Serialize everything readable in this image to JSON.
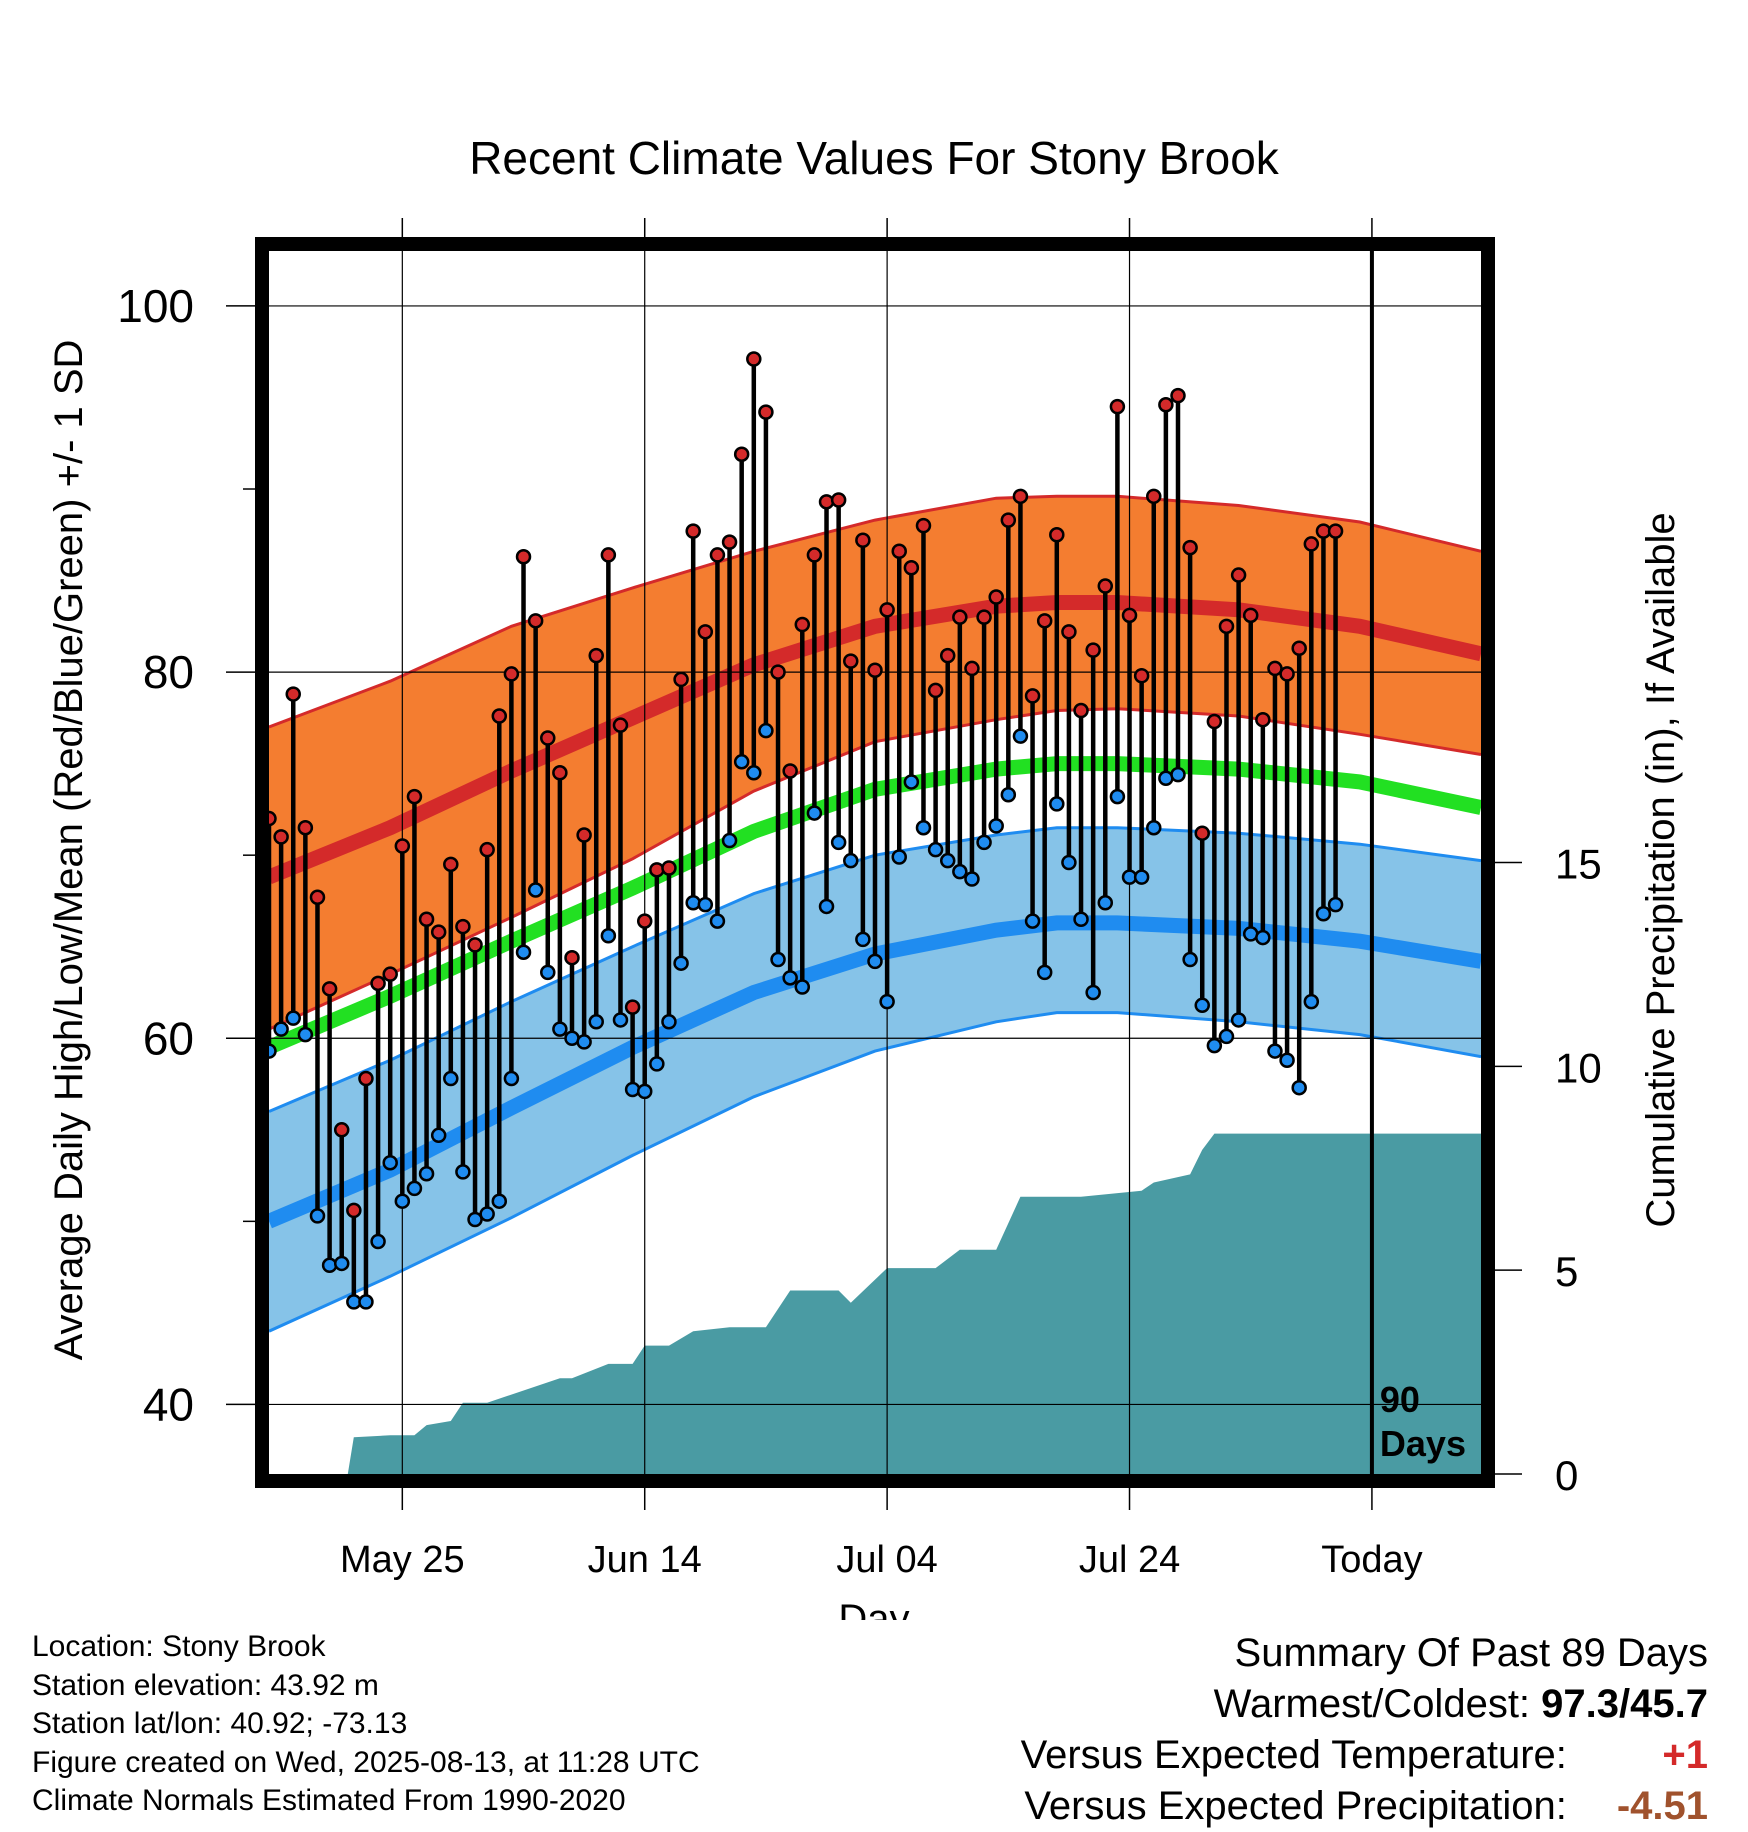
{
  "colors": {
    "high_band": "#f47d30",
    "high_mean": "#d42a2a",
    "mean_line": "#22e022",
    "low_band": "#86c3e8",
    "low_mean": "#1f8cf0",
    "band_edge_high": "#d42a2a",
    "band_edge_low": "#1f8cf0",
    "precip_fill": "#4a9ba3",
    "high_dot": "#d42a2a",
    "low_dot": "#1f8cf0",
    "warm_value": "#d42a2a",
    "precip_value": "#a0522d"
  },
  "chart_data": {
    "type": "line",
    "title": "Recent Climate Values For Stony Brook",
    "xlabel": "Day",
    "ylabel": "Average Daily High/Low/Mean (Red/Blue/Green) +/- 1 SD",
    "y2label": "Cumulative Precipitation (in), If Available",
    "x_ticks": [
      "May 25",
      "Jun 14",
      "Jul 04",
      "Jul 24",
      "Today"
    ],
    "x_tick_days": [
      11,
      31,
      51,
      71,
      91
    ],
    "x_range": [
      0,
      100
    ],
    "y_ticks": [
      40,
      60,
      80,
      100
    ],
    "ylim": [
      36.2,
      103
    ],
    "y2_ticks": [
      0,
      5,
      10,
      15
    ],
    "y2lim": [
      0,
      30
    ],
    "grid": true,
    "today_marker": {
      "day": 91,
      "label_line1": "90",
      "label_line2": "Days"
    },
    "normals": {
      "day": [
        0,
        10,
        20,
        30,
        40,
        50,
        60,
        65,
        70,
        80,
        90,
        100
      ],
      "high_upper": [
        77,
        79.5,
        82.5,
        84.6,
        86.6,
        88.3,
        89.5,
        89.6,
        89.6,
        89.1,
        88.2,
        86.6
      ],
      "high_mean": [
        68.8,
        71.5,
        74.6,
        77.5,
        80.4,
        82.5,
        83.6,
        83.8,
        83.8,
        83.4,
        82.5,
        81.0
      ],
      "high_lower": [
        60.5,
        63.5,
        66.6,
        69.8,
        73.5,
        76.2,
        77.4,
        77.9,
        78.0,
        77.6,
        76.6,
        75.5
      ],
      "mean": [
        59.5,
        62.3,
        65.3,
        68.2,
        71.3,
        73.6,
        74.7,
        75.0,
        75.0,
        74.7,
        74.0,
        72.6
      ],
      "low_upper": [
        56,
        58.8,
        62.0,
        65.0,
        67.9,
        70.0,
        71.1,
        71.5,
        71.5,
        71.2,
        70.6,
        69.7
      ],
      "low_mean": [
        50,
        52.8,
        56.2,
        59.5,
        62.5,
        64.6,
        65.9,
        66.3,
        66.3,
        66.0,
        65.3,
        64.2
      ],
      "low_lower": [
        44,
        47.0,
        50.2,
        53.6,
        56.8,
        59.3,
        60.9,
        61.4,
        61.4,
        60.9,
        60.2,
        59.0
      ]
    },
    "daily": {
      "day": [
        0,
        1,
        2,
        3,
        4,
        5,
        6,
        7,
        8,
        9,
        10,
        11,
        12,
        13,
        14,
        15,
        16,
        17,
        18,
        19,
        20,
        21,
        22,
        23,
        24,
        25,
        26,
        27,
        28,
        29,
        30,
        31,
        32,
        33,
        34,
        35,
        36,
        37,
        38,
        39,
        40,
        41,
        42,
        43,
        44,
        45,
        46,
        47,
        48,
        49,
        50,
        51,
        52,
        53,
        54,
        55,
        56,
        57,
        58,
        59,
        60,
        61,
        62,
        63,
        64,
        65,
        66,
        67,
        68,
        69,
        70,
        71,
        72,
        73,
        74,
        75,
        76,
        77,
        78,
        79,
        80,
        81,
        82,
        83,
        84,
        85,
        86,
        87,
        88,
        89,
        90
      ],
      "high": [
        72.0,
        71.0,
        78.8,
        71.5,
        67.7,
        62.7,
        55.0,
        50.6,
        57.8,
        63.0,
        63.5,
        70.5,
        73.2,
        66.5,
        65.8,
        69.5,
        66.1,
        65.1,
        70.3,
        77.6,
        79.9,
        86.3,
        82.8,
        76.4,
        74.5,
        64.4,
        71.1,
        80.9,
        86.4,
        77.1,
        61.7,
        66.4,
        69.2,
        69.3,
        79.6,
        87.7,
        82.2,
        86.4,
        87.1,
        91.9,
        97.1,
        94.2,
        80.0,
        74.6,
        82.6,
        86.4,
        89.3,
        89.4,
        80.6,
        87.2,
        80.1,
        83.4,
        86.6,
        85.7,
        88.0,
        79.0,
        80.9,
        83.0,
        80.2,
        83.0,
        84.1,
        88.3,
        89.6,
        78.7,
        82.8,
        87.5,
        82.2,
        77.9,
        81.2,
        84.7,
        94.5,
        83.1,
        79.8,
        89.6,
        94.6,
        95.1,
        86.8,
        71.2,
        77.3,
        82.5,
        85.3,
        83.1,
        77.4,
        80.2,
        79.9,
        81.3,
        87.0,
        87.7,
        87.7
      ],
      "low": [
        59.3,
        60.5,
        61.1,
        60.2,
        50.3,
        47.6,
        47.7,
        45.6,
        45.6,
        48.9,
        53.2,
        51.1,
        51.8,
        52.6,
        54.7,
        57.8,
        52.7,
        50.1,
        50.4,
        51.1,
        57.8,
        64.7,
        68.1,
        63.6,
        60.5,
        60.0,
        59.8,
        60.9,
        65.6,
        61.0,
        57.2,
        57.1,
        58.6,
        60.9,
        64.1,
        67.4,
        67.3,
        66.4,
        70.8,
        75.1,
        74.5,
        76.8,
        64.3,
        63.3,
        62.8,
        72.3,
        67.2,
        70.7,
        69.7,
        65.4,
        64.2,
        62.0,
        69.9,
        74.0,
        71.5,
        70.3,
        69.7,
        69.1,
        68.7,
        70.7,
        71.6,
        73.3,
        76.5,
        66.4,
        63.6,
        72.8,
        69.6,
        66.5,
        62.5,
        67.4,
        73.2,
        68.8,
        68.8,
        71.5,
        74.2,
        74.4,
        64.3,
        61.8,
        59.6,
        60.1,
        61.0,
        65.7,
        65.5,
        59.3,
        58.8,
        57.3,
        62.0,
        66.8,
        67.3
      ]
    },
    "precip": {
      "day": [
        0,
        6.5,
        7,
        10,
        12,
        13,
        15,
        16,
        18,
        24,
        25,
        28,
        30,
        31,
        33,
        35,
        38,
        41,
        43,
        47,
        48,
        51,
        55,
        57,
        60,
        62,
        67,
        72,
        73,
        76,
        77,
        78,
        100
      ],
      "cum": [
        0,
        0,
        0.9,
        0.95,
        0.95,
        1.2,
        1.3,
        1.75,
        1.75,
        2.35,
        2.35,
        2.7,
        2.7,
        3.15,
        3.15,
        3.5,
        3.6,
        3.6,
        4.5,
        4.5,
        4.2,
        5.05,
        5.05,
        5.5,
        5.5,
        6.8,
        6.8,
        6.95,
        7.15,
        7.35,
        7.95,
        8.35,
        8.35
      ]
    }
  },
  "info": {
    "location": "Location: Stony Brook",
    "elevation": "Station elevation: 43.92 m",
    "latlon": "Station lat/lon: 40.92; -73.13",
    "created": "Figure created on Wed, 2025-08-13, at 11:28 UTC",
    "normals": "Climate Normals Estimated From 1990-2020"
  },
  "summary": {
    "title": "Summary Of Past 89 Days",
    "warmest_label": "Warmest/Coldest:",
    "warmest_value": "97.3/45.7",
    "temp_label": "Versus Expected Temperature:",
    "temp_value": "+1",
    "precip_label": "Versus Expected Precipitation:",
    "precip_value": "-4.51"
  }
}
